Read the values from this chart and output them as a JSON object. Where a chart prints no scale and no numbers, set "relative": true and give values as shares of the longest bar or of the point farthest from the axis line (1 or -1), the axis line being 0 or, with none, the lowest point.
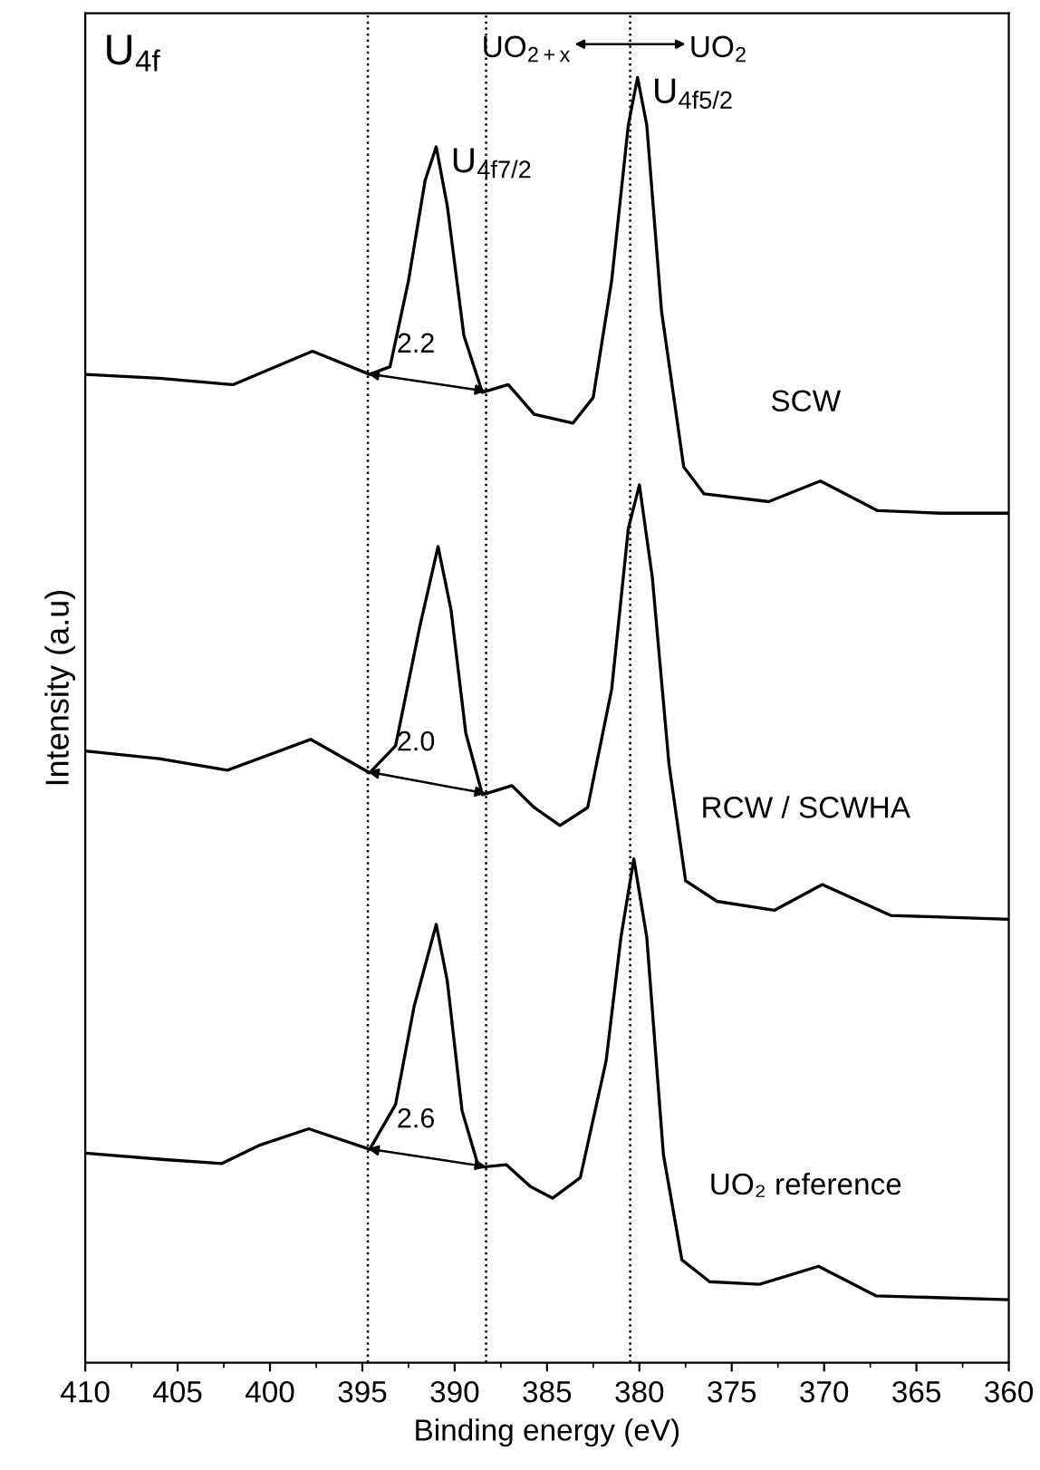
{
  "chart_data": {
    "type": "line",
    "relative": true,
    "xlabel": "Binding energy (eV)",
    "ylabel": "Intensity (a.u)",
    "xlim": [
      410,
      360
    ],
    "xticks": [
      410,
      405,
      400,
      395,
      390,
      385,
      380,
      375,
      370,
      365,
      360
    ],
    "grid": false,
    "legend": false,
    "marker": "none",
    "line_style": "solid",
    "series": [
      {
        "name": "SCW",
        "color": "#000000",
        "x": [
          410,
          406,
          402,
          397.7,
          394.6,
          393.5,
          392.5,
          391.6,
          391.0,
          390.4,
          389.5,
          388.5,
          387.1,
          385.7,
          383.6,
          382.5,
          381.5,
          380.6,
          380.1,
          379.6,
          378.8,
          377.6,
          376.5,
          373.0,
          370.2,
          367.1,
          363.7,
          360
        ],
        "values": [
          0.769,
          0.766,
          0.761,
          0.787,
          0.769,
          0.775,
          0.842,
          0.92,
          0.946,
          0.9,
          0.799,
          0.755,
          0.761,
          0.738,
          0.731,
          0.751,
          0.842,
          0.963,
          1.0,
          0.963,
          0.818,
          0.697,
          0.676,
          0.67,
          0.686,
          0.663,
          0.661,
          0.661
        ]
      },
      {
        "name": "RCW / SCWHA",
        "color": "#000000",
        "x": [
          410,
          406,
          402.3,
          397.8,
          394.6,
          393.2,
          391.9,
          390.9,
          390.2,
          389.4,
          388.5,
          386.9,
          385.7,
          384.3,
          382.8,
          381.5,
          380.6,
          380.0,
          379.3,
          378.4,
          377.5,
          375.8,
          372.7,
          370.1,
          366.4,
          360
        ],
        "values": [
          0.476,
          0.47,
          0.461,
          0.485,
          0.459,
          0.48,
          0.572,
          0.635,
          0.586,
          0.49,
          0.442,
          0.449,
          0.432,
          0.418,
          0.432,
          0.524,
          0.649,
          0.683,
          0.611,
          0.466,
          0.375,
          0.359,
          0.352,
          0.372,
          0.348,
          0.345
        ]
      },
      {
        "name": "UO₂ reference",
        "color": "#000000",
        "x": [
          410,
          405.7,
          402.6,
          400.6,
          397.9,
          394.6,
          393.2,
          392.2,
          391.0,
          390.4,
          389.6,
          388.7,
          387.2,
          385.9,
          384.7,
          383.2,
          381.8,
          381.0,
          380.3,
          379.6,
          378.7,
          377.7,
          376.2,
          373.5,
          370.3,
          367.2,
          360
        ],
        "values": [
          0.163,
          0.158,
          0.155,
          0.169,
          0.182,
          0.166,
          0.201,
          0.277,
          0.341,
          0.297,
          0.196,
          0.152,
          0.154,
          0.137,
          0.128,
          0.144,
          0.235,
          0.331,
          0.392,
          0.331,
          0.162,
          0.08,
          0.063,
          0.061,
          0.075,
          0.052,
          0.049
        ]
      }
    ],
    "ref_lines": [
      {
        "axis": "x",
        "value": 394.7,
        "color": "#000000",
        "line_style": "dotted"
      },
      {
        "axis": "x",
        "value": 388.3,
        "color": "#000000",
        "line_style": "dotted"
      },
      {
        "axis": "x",
        "value": 380.5,
        "color": "#000000",
        "line_style": "dotted"
      }
    ],
    "annotations": [
      "U$_{4f}$",
      "2.2",
      "2.0",
      "2.6",
      "UO$_{2+x}$",
      "UO$_{2}$",
      {
        "text": "U$_{4f7/2}$",
        "x": 391.0,
        "y": 0.946
      },
      {
        "text": "U$_{4f5/2}$",
        "x": 380.1,
        "y": 1.0
      }
    ]
  }
}
